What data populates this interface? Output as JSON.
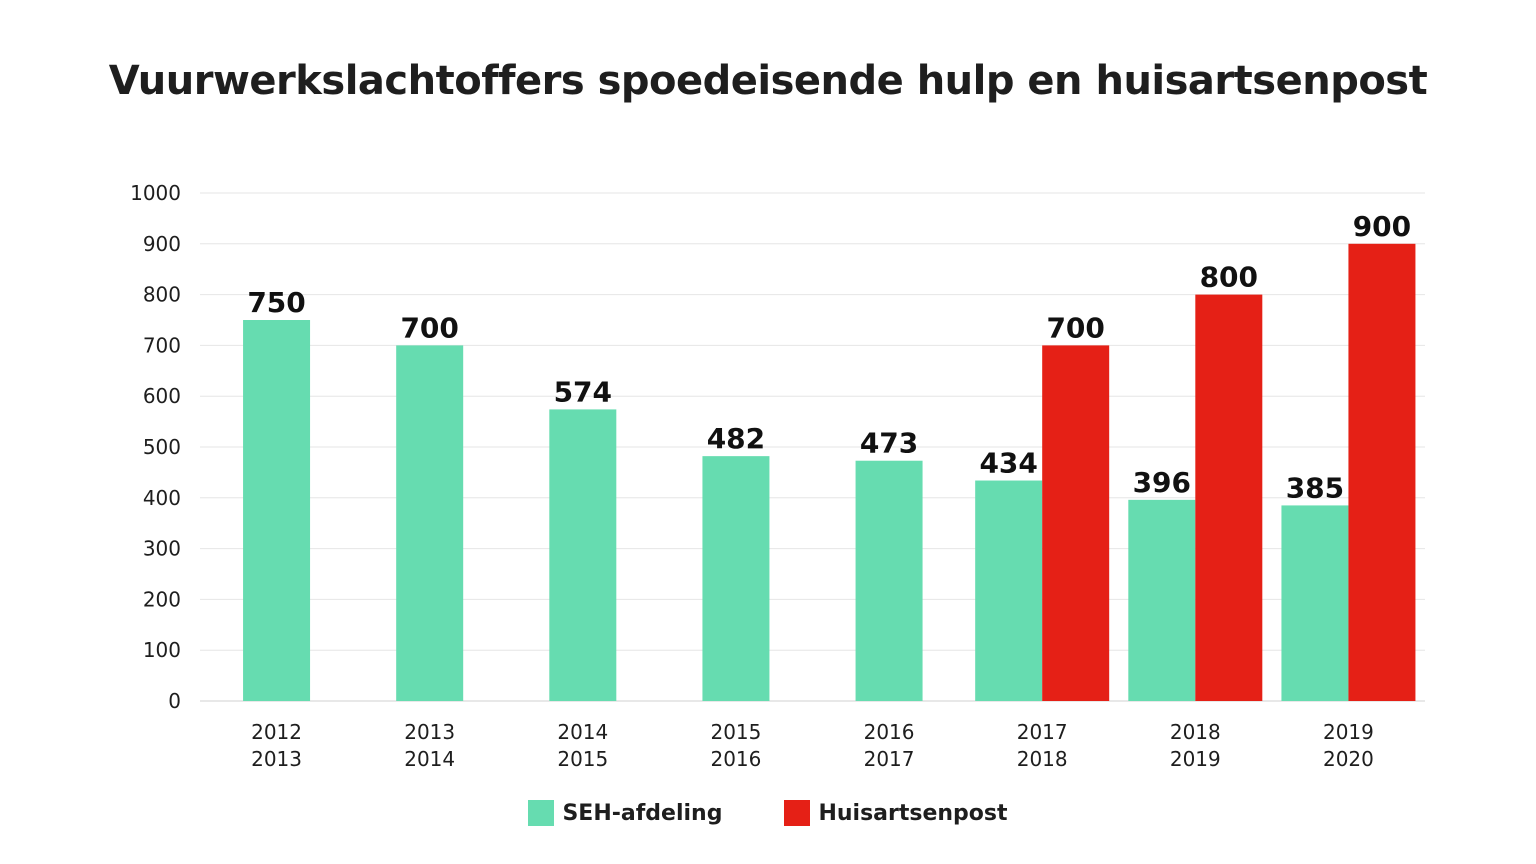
{
  "chart_data": {
    "type": "bar",
    "title": "Vuurwerkslachtoffers spoedeisende hulp en huisartsenpost",
    "xlabel": "",
    "ylabel": "",
    "ylim": [
      0,
      1000
    ],
    "yticks": [
      "0",
      "100",
      "200",
      "300",
      "400",
      "500",
      "600",
      "700",
      "800",
      "900",
      "1000"
    ],
    "grid": true,
    "legend_position": "bottom",
    "categories": [
      [
        "2012",
        "2013"
      ],
      [
        "2013",
        "2014"
      ],
      [
        "2014",
        "2015"
      ],
      [
        "2015",
        "2016"
      ],
      [
        "2016",
        "2017"
      ],
      [
        "2017",
        "2018"
      ],
      [
        "2018",
        "2019"
      ],
      [
        "2019",
        "2020"
      ]
    ],
    "series": [
      {
        "name": "SEH-afdeling",
        "color": "#66dcb0",
        "values": [
          750,
          700,
          574,
          482,
          473,
          434,
          396,
          385
        ]
      },
      {
        "name": "Huisartsenpost",
        "color": "#e52016",
        "values": [
          null,
          null,
          null,
          null,
          null,
          700,
          800,
          900
        ]
      }
    ]
  }
}
